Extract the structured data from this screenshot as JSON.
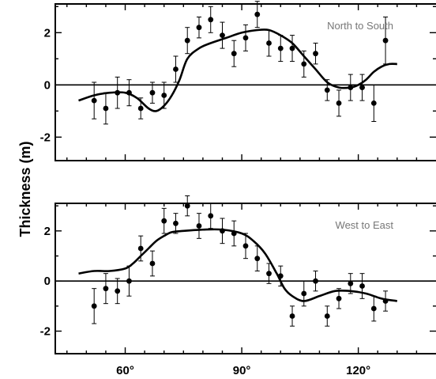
{
  "chart_data": {
    "type": "scatter",
    "ylabel": "Thickness (m)",
    "x_tick_labels": [
      "60°",
      "90°",
      "120°"
    ],
    "x_ticks": [
      60,
      90,
      120
    ],
    "xlim": [
      42,
      140
    ],
    "panels": [
      {
        "label": "North to South",
        "ylim": [
          -2.9,
          3.1
        ],
        "y_ticks": [
          -2,
          0,
          2
        ],
        "y_tick_labels": [
          "-2",
          "0",
          "2"
        ],
        "points": {
          "x": [
            52,
            55,
            58,
            61,
            64,
            67,
            70,
            73,
            76,
            79,
            82,
            85,
            88,
            91,
            94,
            97,
            100,
            103,
            106,
            109,
            112,
            115,
            118,
            121,
            124,
            127
          ],
          "y": [
            -0.6,
            -0.9,
            -0.3,
            -0.3,
            -0.9,
            -0.3,
            -0.4,
            0.6,
            1.7,
            2.2,
            2.5,
            1.9,
            1.2,
            1.8,
            2.7,
            1.6,
            1.4,
            1.4,
            0.8,
            1.2,
            -0.2,
            -0.7,
            -0.1,
            -0.1,
            -0.7,
            1.7
          ],
          "err": [
            0.7,
            0.6,
            0.6,
            0.5,
            0.4,
            0.4,
            0.5,
            0.5,
            0.5,
            0.4,
            0.5,
            0.5,
            0.5,
            0.5,
            0.5,
            0.5,
            0.5,
            0.5,
            0.5,
            0.4,
            0.4,
            0.5,
            0.5,
            0.5,
            0.7,
            0.9
          ]
        },
        "curve": {
          "x": [
            48,
            52,
            56,
            60,
            63,
            66,
            68,
            70,
            72,
            74,
            76,
            79,
            82,
            86,
            90,
            94,
            97,
            100,
            103,
            106,
            109,
            112,
            115,
            118,
            120,
            122,
            124,
            126,
            128,
            130
          ],
          "y": [
            -0.6,
            -0.4,
            -0.3,
            -0.3,
            -0.5,
            -0.9,
            -1.0,
            -0.8,
            -0.4,
            0.2,
            1.0,
            1.4,
            1.6,
            1.8,
            2.0,
            2.1,
            2.1,
            1.9,
            1.6,
            1.1,
            0.6,
            0.1,
            -0.1,
            -0.1,
            0.0,
            0.2,
            0.5,
            0.7,
            0.8,
            0.8
          ]
        }
      },
      {
        "label": "West to East",
        "ylim": [
          -2.9,
          3.1
        ],
        "y_ticks": [
          -2,
          0,
          2
        ],
        "y_tick_labels": [
          "-2",
          "0",
          "2"
        ],
        "points": {
          "x": [
            52,
            55,
            58,
            61,
            64,
            67,
            70,
            73,
            76,
            79,
            82,
            85,
            88,
            91,
            94,
            97,
            100,
            103,
            106,
            109,
            112,
            115,
            118,
            121,
            124,
            127
          ],
          "y": [
            -1.0,
            -0.3,
            -0.4,
            0.0,
            1.3,
            0.7,
            2.4,
            2.3,
            3.0,
            2.2,
            2.6,
            2.0,
            1.9,
            1.4,
            0.9,
            0.3,
            0.2,
            -1.4,
            -0.5,
            0.0,
            -1.4,
            -0.7,
            -0.1,
            -0.2,
            -1.1,
            -0.8
          ],
          "err": [
            0.7,
            0.6,
            0.5,
            0.6,
            0.5,
            0.5,
            0.5,
            0.4,
            0.4,
            0.5,
            0.5,
            0.5,
            0.5,
            0.5,
            0.5,
            0.4,
            0.4,
            0.4,
            0.5,
            0.4,
            0.4,
            0.4,
            0.4,
            0.5,
            0.5,
            0.4
          ]
        },
        "curve": {
          "x": [
            48,
            52,
            56,
            60,
            62,
            64,
            66,
            68,
            70,
            72,
            75,
            80,
            85,
            90,
            93,
            96,
            99,
            101,
            103,
            106,
            110,
            114,
            118,
            122,
            126,
            130
          ],
          "y": [
            0.3,
            0.4,
            0.4,
            0.5,
            0.7,
            1.0,
            1.3,
            1.6,
            1.8,
            1.95,
            2.0,
            2.05,
            2.05,
            1.9,
            1.6,
            1.1,
            0.3,
            -0.3,
            -0.6,
            -0.8,
            -0.6,
            -0.4,
            -0.4,
            -0.5,
            -0.7,
            -0.8
          ]
        }
      }
    ]
  }
}
